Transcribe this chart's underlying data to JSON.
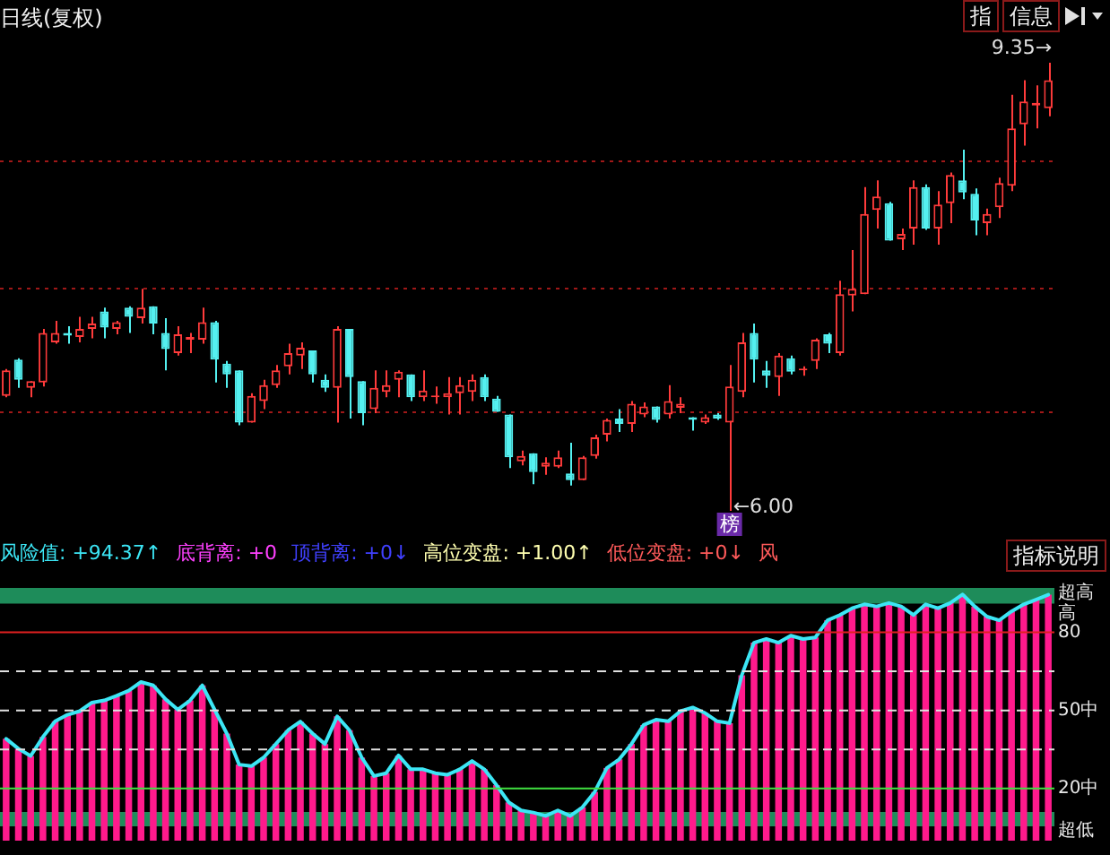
{
  "chart_data": [
    {
      "type": "candlestick",
      "title": "日线(复权)",
      "categories": [
        null,
        null,
        null,
        null,
        null,
        null,
        null,
        null,
        null,
        null,
        null,
        null,
        null,
        null,
        null,
        null,
        null,
        null,
        null,
        null,
        null,
        null,
        null,
        null,
        null,
        null,
        null,
        null,
        null,
        null,
        null,
        null,
        null,
        null,
        null,
        null,
        null,
        null,
        null,
        null,
        null,
        null,
        null,
        null,
        null,
        null,
        null,
        null,
        null,
        null,
        null,
        null,
        null,
        null,
        null,
        null,
        null,
        null,
        null,
        null,
        null,
        null,
        null,
        null,
        null,
        null,
        null,
        null,
        null,
        null,
        null,
        null,
        null,
        null,
        null,
        null,
        null,
        null,
        null,
        null,
        null,
        null,
        null,
        null,
        null,
        null
      ],
      "ohlc": [
        [
          6.86,
          7.06,
          6.85,
          7.05
        ],
        [
          7.13,
          7.14,
          6.92,
          6.98
        ],
        [
          6.92,
          6.97,
          6.85,
          6.97
        ],
        [
          6.96,
          7.36,
          6.93,
          7.33
        ],
        [
          7.26,
          7.42,
          7.25,
          7.33
        ],
        [
          7.33,
          7.38,
          7.25,
          7.31
        ],
        [
          7.3,
          7.45,
          7.26,
          7.36
        ],
        [
          7.36,
          7.45,
          7.29,
          7.4
        ],
        [
          7.49,
          7.52,
          7.29,
          7.37
        ],
        [
          7.36,
          7.42,
          7.32,
          7.41
        ],
        [
          7.52,
          7.53,
          7.33,
          7.45
        ],
        [
          7.44,
          7.66,
          7.4,
          7.52
        ],
        [
          7.53,
          7.53,
          7.32,
          7.4
        ],
        [
          7.33,
          7.44,
          7.05,
          7.21
        ],
        [
          7.18,
          7.38,
          7.16,
          7.32
        ],
        [
          7.28,
          7.33,
          7.18,
          7.3
        ],
        [
          7.28,
          7.52,
          7.25,
          7.41
        ],
        [
          7.41,
          7.42,
          6.96,
          7.13
        ],
        [
          7.1,
          7.12,
          6.92,
          7.02
        ],
        [
          7.05,
          7.05,
          6.64,
          6.66
        ],
        [
          6.66,
          6.88,
          6.66,
          6.86
        ],
        [
          6.82,
          6.98,
          6.76,
          6.94
        ],
        [
          6.94,
          7.09,
          6.92,
          7.05
        ],
        [
          7.08,
          7.25,
          7.02,
          7.18
        ],
        [
          7.16,
          7.26,
          7.06,
          7.22
        ],
        [
          7.2,
          7.2,
          6.96,
          7.02
        ],
        [
          6.98,
          7.02,
          6.89,
          6.92
        ],
        [
          6.92,
          7.38,
          6.66,
          7.36
        ],
        [
          7.36,
          7.36,
          6.69,
          7.0
        ],
        [
          6.97,
          6.97,
          6.64,
          6.73
        ],
        [
          6.76,
          7.05,
          6.73,
          6.92
        ],
        [
          6.89,
          7.05,
          6.85,
          6.94
        ],
        [
          6.98,
          7.05,
          6.85,
          7.04
        ],
        [
          7.02,
          7.02,
          6.82,
          6.85
        ],
        [
          6.85,
          7.05,
          6.82,
          6.9
        ],
        [
          6.85,
          6.93,
          6.8,
          6.86
        ],
        [
          6.85,
          7.0,
          6.72,
          6.88
        ],
        [
          6.88,
          7.0,
          6.72,
          6.94
        ],
        [
          6.89,
          7.02,
          6.82,
          6.98
        ],
        [
          7.0,
          7.02,
          6.82,
          6.85
        ],
        [
          6.84,
          6.86,
          6.74,
          6.74
        ],
        [
          6.72,
          6.72,
          6.32,
          6.4
        ],
        [
          6.37,
          6.45,
          6.34,
          6.41
        ],
        [
          6.43,
          6.43,
          6.2,
          6.29
        ],
        [
          6.33,
          6.4,
          6.27,
          6.36
        ],
        [
          6.33,
          6.45,
          6.32,
          6.4
        ],
        [
          6.28,
          6.51,
          6.19,
          6.23
        ],
        [
          6.23,
          6.41,
          6.23,
          6.4
        ],
        [
          6.41,
          6.57,
          6.39,
          6.55
        ],
        [
          6.57,
          6.69,
          6.52,
          6.68
        ],
        [
          6.69,
          6.76,
          6.59,
          6.65
        ],
        [
          6.65,
          6.82,
          6.59,
          6.8
        ],
        [
          6.72,
          6.81,
          6.7,
          6.78
        ],
        [
          6.78,
          6.78,
          6.66,
          6.68
        ],
        [
          6.72,
          6.94,
          6.69,
          6.82
        ],
        [
          6.77,
          6.85,
          6.73,
          6.8
        ],
        [
          6.7,
          6.7,
          6.6,
          6.68
        ],
        [
          6.66,
          6.72,
          6.65,
          6.7
        ],
        [
          6.72,
          6.73,
          6.68,
          6.69
        ],
        [
          6.66,
          7.09,
          6.0,
          6.93
        ],
        [
          6.89,
          7.33,
          6.85,
          7.26
        ],
        [
          7.33,
          7.4,
          6.96,
          7.13
        ],
        [
          7.05,
          7.12,
          6.92,
          7.01
        ],
        [
          7.0,
          7.18,
          6.86,
          7.16
        ],
        [
          7.14,
          7.16,
          7.02,
          7.04
        ],
        [
          7.05,
          7.08,
          7.01,
          7.06
        ],
        [
          7.12,
          7.29,
          7.06,
          7.28
        ],
        [
          7.32,
          7.33,
          7.18,
          7.25
        ],
        [
          7.18,
          7.72,
          7.16,
          7.62
        ],
        [
          7.61,
          7.95,
          7.49,
          7.66
        ],
        [
          7.62,
          8.42,
          7.62,
          8.22
        ],
        [
          8.25,
          8.47,
          8.11,
          8.35
        ],
        [
          8.3,
          8.31,
          8.02,
          8.02
        ],
        [
          8.03,
          8.11,
          7.95,
          8.07
        ],
        [
          8.11,
          8.47,
          7.99,
          8.42
        ],
        [
          8.42,
          8.44,
          8.1,
          8.11
        ],
        [
          8.11,
          8.39,
          7.99,
          8.29
        ],
        [
          8.3,
          8.53,
          8.15,
          8.51
        ],
        [
          8.47,
          8.7,
          8.33,
          8.38
        ],
        [
          8.37,
          8.41,
          8.06,
          8.17
        ],
        [
          8.15,
          8.26,
          8.06,
          8.22
        ],
        [
          8.27,
          8.49,
          8.19,
          8.45
        ],
        [
          8.43,
          9.11,
          8.39,
          8.86
        ],
        [
          8.89,
          9.22,
          8.73,
          9.06
        ],
        [
          9.03,
          9.18,
          8.86,
          9.05
        ],
        [
          9.01,
          9.35,
          8.95,
          9.22
        ]
      ],
      "yticks": [
        {
          "value": 6.74,
          "label": null
        },
        {
          "value": 7.66,
          "label": null
        },
        {
          "value": 8.61,
          "label": null
        }
      ],
      "grid": "y",
      "tick_labels": false,
      "annotations": [
        "9.35→",
        "←6.00",
        "榜",
        "指",
        "信息"
      ]
    },
    {
      "type": "bar",
      "categories": [
        null,
        null,
        null,
        null,
        null,
        null,
        null,
        null,
        null,
        null,
        null,
        null,
        null,
        null,
        null,
        null,
        null,
        null,
        null,
        null,
        null,
        null,
        null,
        null,
        null,
        null,
        null,
        null,
        null,
        null,
        null,
        null,
        null,
        null,
        null,
        null,
        null,
        null,
        null,
        null,
        null,
        null,
        null,
        null,
        null,
        null,
        null,
        null,
        null,
        null,
        null,
        null,
        null,
        null,
        null,
        null,
        null,
        null,
        null,
        null,
        null,
        null,
        null,
        null,
        null,
        null,
        null,
        null,
        null,
        null,
        null,
        null,
        null,
        null,
        null,
        null,
        null,
        null,
        null,
        null,
        null,
        null,
        null,
        null,
        null,
        null
      ],
      "series": [
        {
          "type": "bar",
          "color": "#ff1a8c",
          "values": [
            39.1,
            35.3,
            32.5,
            39.8,
            45.8,
            48.3,
            49.7,
            53,
            53.8,
            55.6,
            57.6,
            60.9,
            59.6,
            54.3,
            50.3,
            53.8,
            59.6,
            50.3,
            41.1,
            29.2,
            28.6,
            31.9,
            37.1,
            42.4,
            45.7,
            41.1,
            37.1,
            47.7,
            42.4,
            31.9,
            24.8,
            25.9,
            32.7,
            27.4,
            27.4,
            25.9,
            25.3,
            27.4,
            30.6,
            27.4,
            21.3,
            14.7,
            11.6,
            10.8,
            9.5,
            11.6,
            9.5,
            12.8,
            18.7,
            27.9,
            31.2,
            37.1,
            44.4,
            46.4,
            45.8,
            49.7,
            51.1,
            49,
            45.8,
            45.1,
            63.5,
            76,
            77.4,
            76,
            78.7,
            77.4,
            78,
            84.6,
            86.6,
            89.2,
            90.7,
            89.9,
            91.2,
            89.9,
            86.6,
            90.7,
            89.2,
            91.2,
            94.5,
            89.9,
            86,
            84.6,
            88,
            90.7,
            92.5,
            94.4
          ]
        },
        {
          "type": "line",
          "color": "#3ce6f5",
          "values": [
            39.1,
            35.3,
            32.5,
            39.8,
            45.8,
            48.3,
            49.7,
            53,
            53.8,
            55.6,
            57.6,
            60.9,
            59.6,
            54.3,
            50.3,
            53.8,
            59.6,
            50.3,
            41.1,
            29.2,
            28.6,
            31.9,
            37.1,
            42.4,
            45.7,
            41.1,
            37.1,
            47.7,
            42.4,
            31.9,
            24.8,
            25.9,
            32.7,
            27.4,
            27.4,
            25.9,
            25.3,
            27.4,
            30.6,
            27.4,
            21.3,
            14.7,
            11.6,
            10.8,
            9.5,
            11.6,
            9.5,
            12.8,
            18.7,
            27.9,
            31.2,
            37.1,
            44.4,
            46.4,
            45.8,
            49.7,
            51.1,
            49,
            45.8,
            45.1,
            63.5,
            76,
            77.4,
            76,
            78.7,
            77.4,
            78,
            84.6,
            86.6,
            89.2,
            90.7,
            89.9,
            91.2,
            89.9,
            86.6,
            90.7,
            89.2,
            91.2,
            94.5,
            89.9,
            86,
            84.6,
            88,
            90.7,
            92.5,
            94.4
          ]
        }
      ],
      "ylim": [
        0,
        97
      ],
      "yticks": [
        {
          "value": 95,
          "label": "超高"
        },
        {
          "value": 87,
          "label": "高"
        },
        {
          "value": 80,
          "label": "80"
        },
        {
          "value": 50,
          "label": "50中"
        },
        {
          "value": 20,
          "label": "20中"
        },
        {
          "value": 4,
          "label": "超低"
        }
      ],
      "tick_labels": "y",
      "ref_lines": [
        {
          "axis": "y",
          "value": 80,
          "color": "#e02020",
          "line_style": "solid"
        },
        {
          "axis": "y",
          "value": 65,
          "color": "#e0e0e0",
          "line_style": "dashed"
        },
        {
          "axis": "y",
          "value": 50,
          "color": "#e0e0e0",
          "line_style": "dashed"
        },
        {
          "axis": "y",
          "value": 35,
          "color": "#e0e0e0",
          "line_style": "dashed"
        },
        {
          "axis": "y",
          "value": 20,
          "color": "#40e040",
          "line_style": "solid"
        }
      ],
      "bands": [
        {
          "axis": "y",
          "from": 91,
          "to": 97,
          "color": "#1e8c5a"
        },
        {
          "axis": "y",
          "from": 5.5,
          "to": 11,
          "color": "#1e8c5a"
        }
      ],
      "annotations": [
        "风险值: +94.37↑",
        "底背离: +0",
        "顶背离: +0↓",
        "高位变盘: +1.00↑",
        "低位变盘: +0↓",
        "风",
        "指标说明"
      ]
    }
  ]
}
